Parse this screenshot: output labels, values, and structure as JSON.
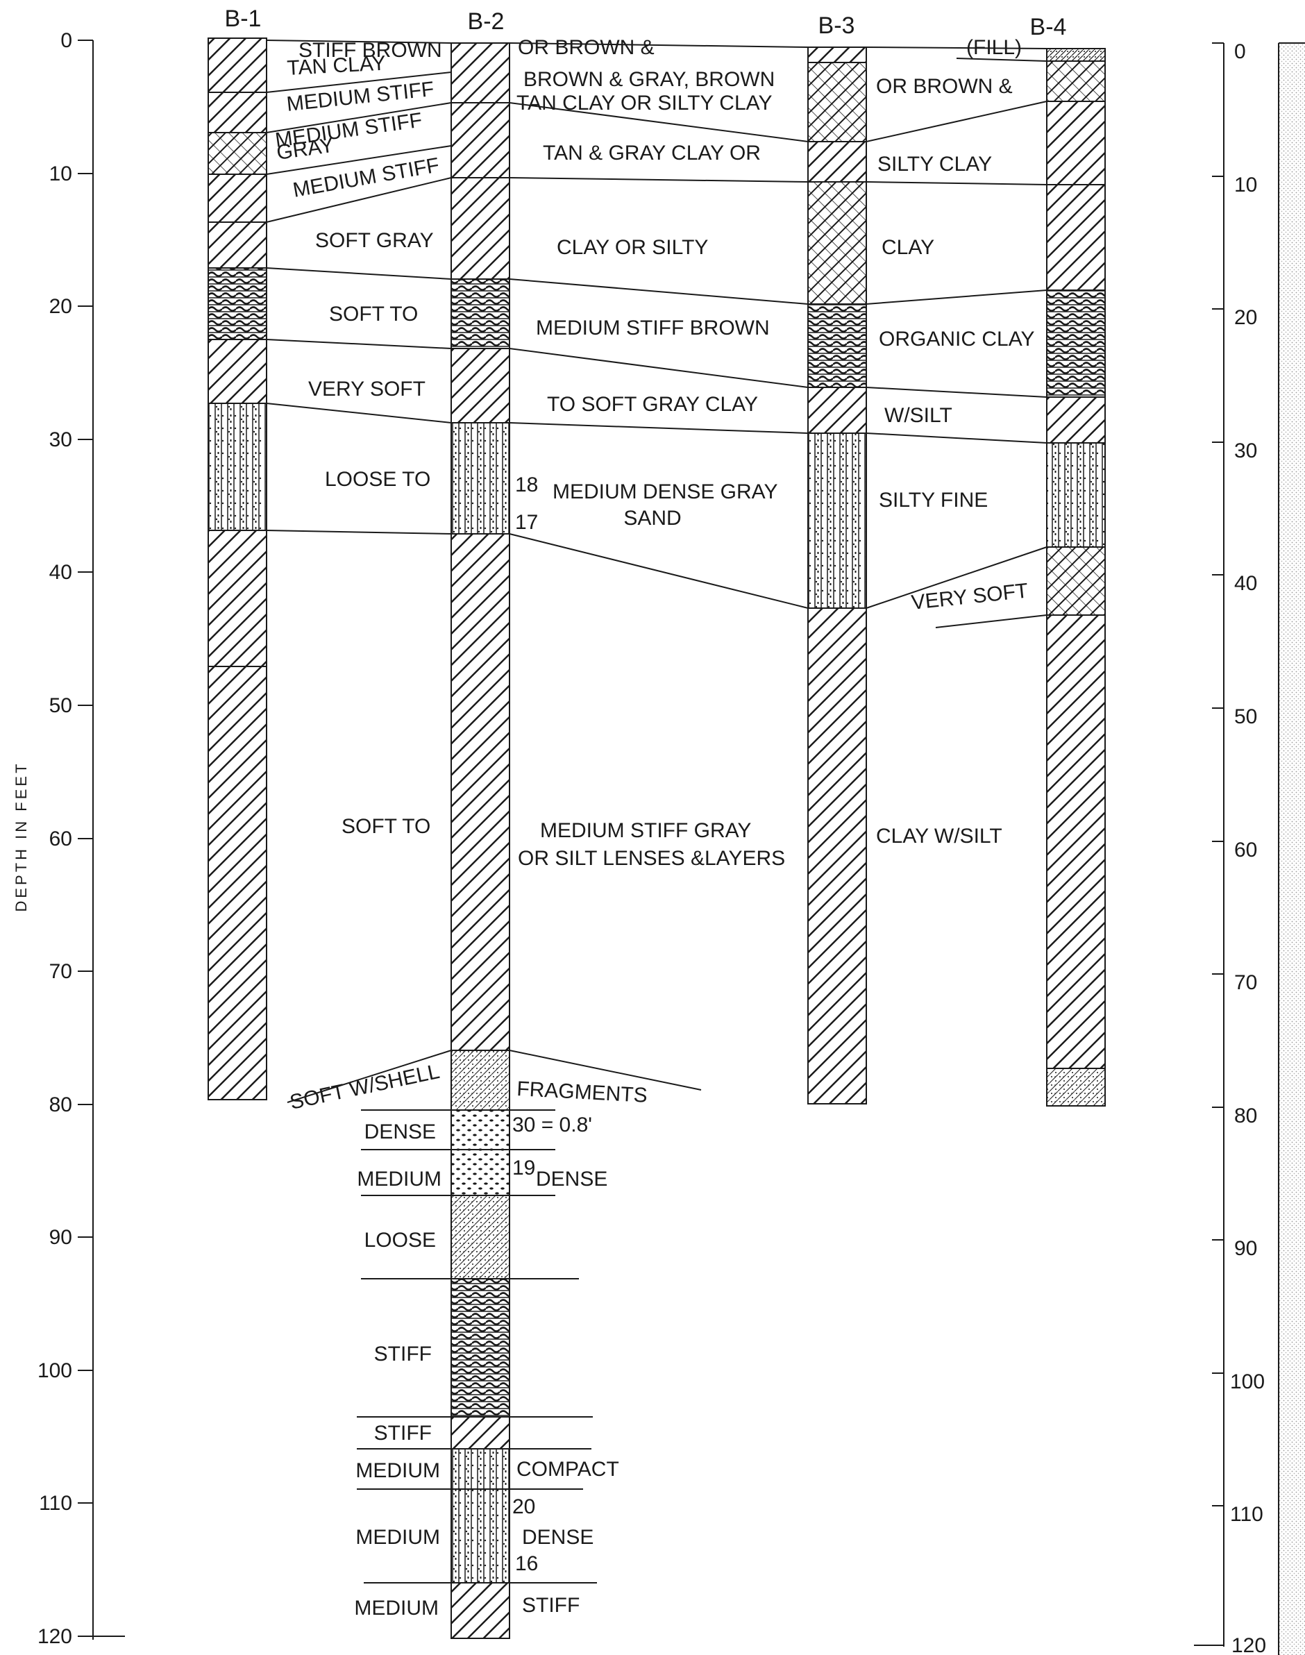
{
  "axis": {
    "title": "DEPTH IN FEET",
    "ticks": [
      "0",
      "10",
      "20",
      "30",
      "40",
      "50",
      "60",
      "70",
      "80",
      "90",
      "100",
      "110",
      "120"
    ]
  },
  "borings": [
    "B-1",
    "B-2",
    "B-3",
    "B-4"
  ],
  "colors": {
    "ink": "#1a1a1a",
    "paper": "#ffffff",
    "stipple": "#cfcfcf"
  },
  "layers": [
    {
      "left": "STIFF BROWN",
      "center": "OR BROWN &",
      "right": "(FILL)"
    },
    {
      "left": "TAN CLAY",
      "center": "BROWN & GRAY, BROWN"
    },
    {
      "left": "MEDIUM STIFF",
      "center": "TAN CLAY OR SILTY CLAY",
      "right": "OR BROWN &"
    },
    {
      "left": "MEDIUM STIFF",
      "center": "TAN & GRAY CLAY OR",
      "right": "SILTY CLAY"
    },
    {
      "left": "GRAY"
    },
    {
      "left": "MEDIUM STIFF"
    },
    {
      "left": "SOFT GRAY",
      "center": "CLAY OR SILTY",
      "right": "CLAY"
    },
    {
      "left": "SOFT TO",
      "center": "MEDIUM STIFF BROWN",
      "right": "ORGANIC CLAY"
    },
    {
      "left": "VERY SOFT",
      "center": "TO SOFT GRAY CLAY",
      "right": "W/SILT"
    },
    {
      "left": "LOOSE TO",
      "center": "MEDIUM DENSE GRAY",
      "center2": "SAND",
      "right": "SILTY FINE"
    },
    {
      "right": "VERY SOFT"
    },
    {
      "left": "SOFT TO",
      "center": "MEDIUM STIFF GRAY",
      "center2": "OR SILT LENSES &LAYERS",
      "right": "CLAY W/SILT"
    },
    {
      "left": "SOFT W/SHELL",
      "center": "FRAGMENTS"
    }
  ],
  "deep_layers": [
    {
      "left": "DENSE",
      "right": "30 = 0.8'"
    },
    {
      "left": "MEDIUM",
      "right": "DENSE",
      "count": "19"
    },
    {
      "left": "LOOSE"
    },
    {
      "left": "STIFF"
    },
    {
      "left": "STIFF"
    },
    {
      "left": "MEDIUM",
      "right": "COMPACT"
    },
    {
      "left": "MEDIUM",
      "right": "DENSE",
      "count_top": "20",
      "count_bottom": "16"
    },
    {
      "left": "MEDIUM",
      "right": "STIFF"
    }
  ],
  "blow_counts": [
    "18",
    "17"
  ]
}
